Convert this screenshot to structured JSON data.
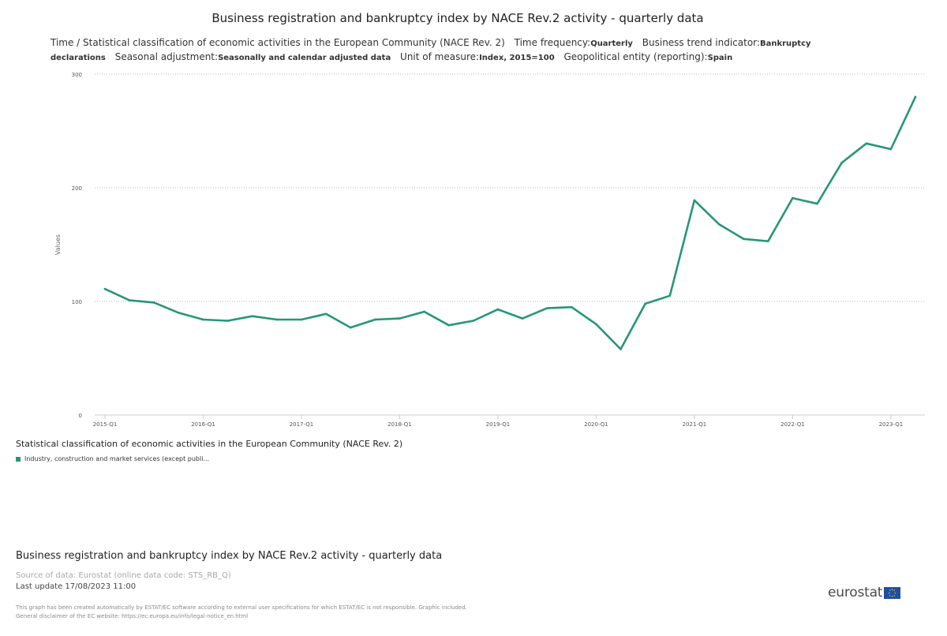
{
  "title": "Business registration and bankruptcy index by NACE Rev.2 activity - quarterly data",
  "subtitle": {
    "part1": "Time / Statistical classification of economic activities in the European Community (NACE Rev. 2)",
    "freq_label": "Time frequency:",
    "freq_value": "Quarterly",
    "indicator_label": "Business trend indicator:",
    "indicator_value": "Bankruptcy declarations",
    "seasonal_label": "Seasonal adjustment:",
    "seasonal_value": "Seasonally and calendar adjusted data",
    "unit_label": "Unit of measure:",
    "unit_value": "Index, 2015=100",
    "geo_label": "Geopolitical entity (reporting):",
    "geo_value": "Spain"
  },
  "legend": {
    "title": "Statistical classification of economic activities in the European Community (NACE Rev. 2)",
    "items": [
      {
        "label": "Industry, construction and market services (except publi...",
        "color": "#26967a"
      }
    ]
  },
  "footer": {
    "title": "Business registration and bankruptcy index by NACE Rev.2 activity - quarterly data",
    "source": "Source of data: Eurostat (online data code: STS_RB_Q)",
    "last_update": "Last update 17/08/2023 11:00",
    "disclaimer_1": "This graph has been created automatically by ESTAT/EC software according to external user specifications for which ESTAT/EC is not responsible. Graphic included.",
    "disclaimer_2": "General disclaimer of the EC website: https://ec.europa.eu/info/legal-notice_en.html",
    "logo_text": "eurostat"
  },
  "chart_data": {
    "type": "line",
    "title": "Business registration and bankruptcy index by NACE Rev.2 activity - quarterly data",
    "ylabel": "Values",
    "xlabel": "",
    "ylim": [
      0,
      300
    ],
    "yticks": [
      0,
      100,
      200,
      300
    ],
    "ytick_labels": [
      "0",
      "100",
      "200",
      "300"
    ],
    "grid": true,
    "grid_style": "dotted",
    "legend_position": "bottom-left",
    "x": [
      "2015-Q1",
      "2015-Q2",
      "2015-Q3",
      "2015-Q4",
      "2016-Q1",
      "2016-Q2",
      "2016-Q3",
      "2016-Q4",
      "2017-Q1",
      "2017-Q2",
      "2017-Q3",
      "2017-Q4",
      "2018-Q1",
      "2018-Q2",
      "2018-Q3",
      "2018-Q4",
      "2019-Q1",
      "2019-Q2",
      "2019-Q3",
      "2019-Q4",
      "2020-Q1",
      "2020-Q2",
      "2020-Q3",
      "2020-Q4",
      "2021-Q1",
      "2021-Q2",
      "2021-Q3",
      "2021-Q4",
      "2022-Q1",
      "2022-Q2",
      "2022-Q3",
      "2022-Q4",
      "2023-Q1",
      "2023-Q2"
    ],
    "xtick_labels": [
      "2015-Q1",
      "2016-Q1",
      "2017-Q1",
      "2018-Q1",
      "2019-Q1",
      "2020-Q1",
      "2021-Q1",
      "2022-Q1",
      "2023-Q1"
    ],
    "series": [
      {
        "name": "Industry, construction and market services (except publi...",
        "color": "#26967a",
        "values": [
          111,
          101,
          99,
          90,
          84,
          83,
          87,
          84,
          84,
          89,
          77,
          84,
          85,
          91,
          79,
          83,
          93,
          85,
          94,
          95,
          80,
          58,
          98,
          105,
          189,
          168,
          155,
          153,
          191,
          186,
          222,
          239,
          234,
          280
        ]
      }
    ]
  }
}
